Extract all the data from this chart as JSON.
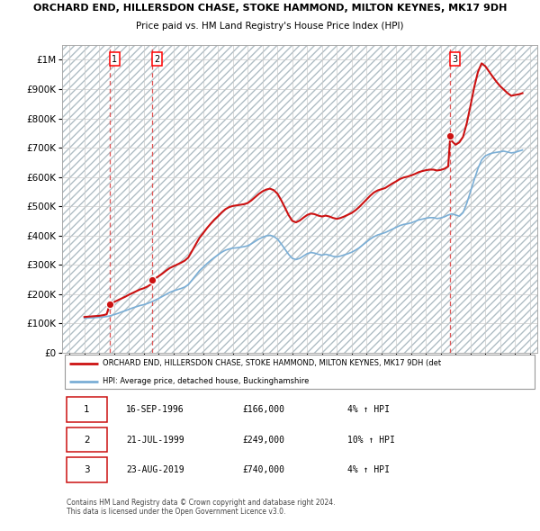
{
  "title": "ORCHARD END, HILLERSDON CHASE, STOKE HAMMOND, MILTON KEYNES, MK17 9DH",
  "subtitle": "Price paid vs. HM Land Registry's House Price Index (HPI)",
  "xlim_start": 1993.5,
  "xlim_end": 2025.5,
  "ylim_min": 0,
  "ylim_max": 1050000,
  "yticks": [
    0,
    100000,
    200000,
    300000,
    400000,
    500000,
    600000,
    700000,
    800000,
    900000,
    1000000
  ],
  "ytick_labels": [
    "£0",
    "£100K",
    "£200K",
    "£300K",
    "£400K",
    "£500K",
    "£600K",
    "£700K",
    "£800K",
    "£900K",
    "£1M"
  ],
  "hpi_line_color": "#7aaed6",
  "price_line_color": "#cc1111",
  "sale_marker_color": "#cc1111",
  "dashed_vline_color": "#e05555",
  "grid_color": "#cccccc",
  "transactions": [
    {
      "date_num": 1996.71,
      "price": 166000,
      "label": "1"
    },
    {
      "date_num": 1999.55,
      "price": 249000,
      "label": "2"
    },
    {
      "date_num": 2019.64,
      "price": 740000,
      "label": "3"
    }
  ],
  "legend_entries": [
    "ORCHARD END, HILLERSDON CHASE, STOKE HAMMOND, MILTON KEYNES, MK17 9DH (det",
    "HPI: Average price, detached house, Buckinghamshire"
  ],
  "table_rows": [
    {
      "num": "1",
      "date": "16-SEP-1996",
      "price": "£166,000",
      "change": "4% ↑ HPI"
    },
    {
      "num": "2",
      "date": "21-JUL-1999",
      "price": "£249,000",
      "change": "10% ↑ HPI"
    },
    {
      "num": "3",
      "date": "23-AUG-2019",
      "price": "£740,000",
      "change": "4% ↑ HPI"
    }
  ],
  "footnote": "Contains HM Land Registry data © Crown copyright and database right 2024.\nThis data is licensed under the Open Government Licence v3.0.",
  "hpi_data_x": [
    1995.0,
    1995.25,
    1995.5,
    1995.75,
    1996.0,
    1996.25,
    1996.5,
    1996.75,
    1997.0,
    1997.25,
    1997.5,
    1997.75,
    1998.0,
    1998.25,
    1998.5,
    1998.75,
    1999.0,
    1999.25,
    1999.5,
    1999.75,
    2000.0,
    2000.25,
    2000.5,
    2000.75,
    2001.0,
    2001.25,
    2001.5,
    2001.75,
    2002.0,
    2002.25,
    2002.5,
    2002.75,
    2003.0,
    2003.25,
    2003.5,
    2003.75,
    2004.0,
    2004.25,
    2004.5,
    2004.75,
    2005.0,
    2005.25,
    2005.5,
    2005.75,
    2006.0,
    2006.25,
    2006.5,
    2006.75,
    2007.0,
    2007.25,
    2007.5,
    2007.75,
    2008.0,
    2008.25,
    2008.5,
    2008.75,
    2009.0,
    2009.25,
    2009.5,
    2009.75,
    2010.0,
    2010.25,
    2010.5,
    2010.75,
    2011.0,
    2011.25,
    2011.5,
    2011.75,
    2012.0,
    2012.25,
    2012.5,
    2012.75,
    2013.0,
    2013.25,
    2013.5,
    2013.75,
    2014.0,
    2014.25,
    2014.5,
    2014.75,
    2015.0,
    2015.25,
    2015.5,
    2015.75,
    2016.0,
    2016.25,
    2016.5,
    2016.75,
    2017.0,
    2017.25,
    2017.5,
    2017.75,
    2018.0,
    2018.25,
    2018.5,
    2018.75,
    2019.0,
    2019.25,
    2019.5,
    2019.75,
    2020.0,
    2020.25,
    2020.5,
    2020.75,
    2021.0,
    2021.25,
    2021.5,
    2021.75,
    2022.0,
    2022.25,
    2022.5,
    2022.75,
    2023.0,
    2023.25,
    2023.5,
    2023.75,
    2024.0,
    2024.25,
    2024.5
  ],
  "hpi_data_y": [
    118000,
    118500,
    119000,
    120000,
    121000,
    122000,
    123500,
    126000,
    130000,
    134000,
    139000,
    143000,
    148000,
    153000,
    157000,
    161000,
    164000,
    168000,
    173000,
    179000,
    185000,
    192000,
    199000,
    206000,
    211000,
    215000,
    219000,
    224000,
    232000,
    248000,
    264000,
    280000,
    292000,
    304000,
    315000,
    325000,
    334000,
    343000,
    350000,
    354000,
    357000,
    358000,
    360000,
    362000,
    365000,
    372000,
    380000,
    388000,
    394000,
    399000,
    401000,
    397000,
    388000,
    372000,
    354000,
    336000,
    322000,
    318000,
    322000,
    330000,
    338000,
    342000,
    340000,
    336000,
    333000,
    336000,
    333000,
    329000,
    327000,
    330000,
    334000,
    338000,
    343000,
    350000,
    358000,
    368000,
    378000,
    388000,
    396000,
    402000,
    406000,
    410000,
    416000,
    422000,
    428000,
    434000,
    438000,
    440000,
    443000,
    448000,
    453000,
    456000,
    459000,
    461000,
    461000,
    458000,
    460000,
    464000,
    470000,
    474000,
    470000,
    466000,
    478000,
    510000,
    550000,
    590000,
    628000,
    658000,
    672000,
    678000,
    682000,
    684000,
    686000,
    688000,
    685000,
    682000,
    684000,
    688000,
    692000
  ],
  "price_line_x": [
    1995.0,
    1995.25,
    1995.5,
    1995.75,
    1996.0,
    1996.25,
    1996.5,
    1996.71,
    1996.75,
    1997.0,
    1997.25,
    1997.5,
    1997.75,
    1998.0,
    1998.25,
    1998.5,
    1998.75,
    1999.0,
    1999.25,
    1999.5,
    1999.55,
    1999.75,
    2000.0,
    2000.25,
    2000.5,
    2000.75,
    2001.0,
    2001.25,
    2001.5,
    2001.75,
    2002.0,
    2002.25,
    2002.5,
    2002.75,
    2003.0,
    2003.25,
    2003.5,
    2003.75,
    2004.0,
    2004.25,
    2004.5,
    2004.75,
    2005.0,
    2005.25,
    2005.5,
    2005.75,
    2006.0,
    2006.25,
    2006.5,
    2006.75,
    2007.0,
    2007.25,
    2007.5,
    2007.75,
    2008.0,
    2008.25,
    2008.5,
    2008.75,
    2009.0,
    2009.25,
    2009.5,
    2009.75,
    2010.0,
    2010.25,
    2010.5,
    2010.75,
    2011.0,
    2011.25,
    2011.5,
    2011.75,
    2012.0,
    2012.25,
    2012.5,
    2012.75,
    2013.0,
    2013.25,
    2013.5,
    2013.75,
    2014.0,
    2014.25,
    2014.5,
    2014.75,
    2015.0,
    2015.25,
    2015.5,
    2015.75,
    2016.0,
    2016.25,
    2016.5,
    2016.75,
    2017.0,
    2017.25,
    2017.5,
    2017.75,
    2018.0,
    2018.25,
    2018.5,
    2018.75,
    2019.0,
    2019.25,
    2019.5,
    2019.64,
    2019.75,
    2020.0,
    2020.25,
    2020.5,
    2020.75,
    2021.0,
    2021.25,
    2021.5,
    2021.75,
    2022.0,
    2022.25,
    2022.5,
    2022.75,
    2023.0,
    2023.25,
    2023.5,
    2023.75,
    2024.0,
    2024.25,
    2024.5
  ],
  "price_line_y": [
    122000,
    123000,
    124000,
    125000,
    126000,
    128000,
    131000,
    166000,
    167000,
    173000,
    179000,
    185000,
    191000,
    198000,
    204000,
    210000,
    216000,
    220000,
    226000,
    234000,
    249000,
    253000,
    261000,
    270000,
    280000,
    289000,
    295000,
    301000,
    307000,
    314000,
    325000,
    347000,
    370000,
    392000,
    408000,
    425000,
    440000,
    454000,
    466000,
    479000,
    490000,
    497000,
    501000,
    503000,
    505000,
    507000,
    511000,
    520000,
    531000,
    542000,
    551000,
    557000,
    560000,
    555000,
    543000,
    521000,
    496000,
    470000,
    450000,
    445000,
    451000,
    461000,
    470000,
    475000,
    473000,
    468000,
    465000,
    468000,
    465000,
    460000,
    457000,
    460000,
    465000,
    471000,
    477000,
    486000,
    497000,
    510000,
    523000,
    536000,
    547000,
    554000,
    558000,
    562000,
    570000,
    578000,
    585000,
    593000,
    598000,
    601000,
    605000,
    610000,
    616000,
    620000,
    623000,
    625000,
    625000,
    622000,
    624000,
    628000,
    636000,
    740000,
    722000,
    710000,
    718000,
    737000,
    783000,
    843000,
    906000,
    958000,
    988000,
    978000,
    960000,
    942000,
    925000,
    910000,
    898000,
    886000,
    877000,
    880000,
    882000,
    886000
  ]
}
